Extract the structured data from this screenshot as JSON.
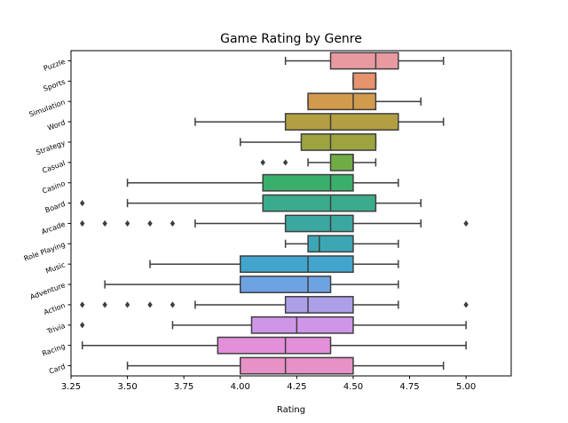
{
  "chart_data": {
    "type": "boxplot",
    "title": "Game Rating by Genre",
    "xlabel": "Rating",
    "ylabel": "",
    "xlim": [
      3.25,
      5.2
    ],
    "xticks": [
      "3.25",
      "3.50",
      "3.75",
      "4.00",
      "4.25",
      "4.50",
      "4.75",
      "5.00"
    ],
    "grid": false,
    "categories": [
      "Puzzle",
      "Sports",
      "Simulation",
      "Word",
      "Strategy",
      "Casual",
      "Casino",
      "Board",
      "Arcade",
      "Role Playing",
      "Music",
      "Adventure",
      "Action",
      "Trivia",
      "Racing",
      "Card"
    ],
    "series": [
      {
        "label": "Puzzle",
        "color": "#e99aa1",
        "whislo": 4.2,
        "q1": 4.4,
        "med": 4.6,
        "q3": 4.7,
        "whishi": 4.9,
        "fliers": []
      },
      {
        "label": "Sports",
        "color": "#e7936e",
        "whislo": 4.5,
        "q1": 4.5,
        "med": 4.6,
        "q3": 4.6,
        "whishi": 4.6,
        "fliers": []
      },
      {
        "label": "Simulation",
        "color": "#d19a4c",
        "whislo": 4.3,
        "q1": 4.3,
        "med": 4.5,
        "q3": 4.6,
        "whishi": 4.8,
        "fliers": []
      },
      {
        "label": "Word",
        "color": "#b39e41",
        "whislo": 3.8,
        "q1": 4.2,
        "med": 4.4,
        "q3": 4.7,
        "whishi": 4.9,
        "fliers": []
      },
      {
        "label": "Strategy",
        "color": "#9ca33f",
        "whislo": 4.0,
        "q1": 4.27,
        "med": 4.4,
        "q3": 4.6,
        "whishi": 4.6,
        "fliers": []
      },
      {
        "label": "Casual",
        "color": "#70ac45",
        "whislo": 4.3,
        "q1": 4.4,
        "med": 4.5,
        "q3": 4.5,
        "whishi": 4.6,
        "fliers": [
          4.1,
          4.2
        ]
      },
      {
        "label": "Casino",
        "color": "#3aae6b",
        "whislo": 3.5,
        "q1": 4.1,
        "med": 4.4,
        "q3": 4.5,
        "whishi": 4.7,
        "fliers": []
      },
      {
        "label": "Board",
        "color": "#3aab8c",
        "whislo": 3.5,
        "q1": 4.1,
        "med": 4.4,
        "q3": 4.6,
        "whishi": 4.8,
        "fliers": [
          3.3
        ]
      },
      {
        "label": "Arcade",
        "color": "#3aa8a0",
        "whislo": 3.8,
        "q1": 4.2,
        "med": 4.4,
        "q3": 4.5,
        "whishi": 4.8,
        "fliers": [
          3.3,
          3.4,
          3.5,
          3.6,
          3.7,
          5.0
        ]
      },
      {
        "label": "Role Playing",
        "color": "#3ca6b5",
        "whislo": 4.2,
        "q1": 4.3,
        "med": 4.35,
        "q3": 4.5,
        "whishi": 4.7,
        "fliers": []
      },
      {
        "label": "Music",
        "color": "#43a4cd",
        "whislo": 3.6,
        "q1": 4.0,
        "med": 4.3,
        "q3": 4.5,
        "whishi": 4.7,
        "fliers": []
      },
      {
        "label": "Adventure",
        "color": "#6ea3e3",
        "whislo": 3.4,
        "q1": 4.0,
        "med": 4.3,
        "q3": 4.4,
        "whishi": 4.7,
        "fliers": []
      },
      {
        "label": "Action",
        "color": "#ac9fe8",
        "whislo": 3.8,
        "q1": 4.2,
        "med": 4.3,
        "q3": 4.5,
        "whishi": 4.7,
        "fliers": [
          3.3,
          3.4,
          3.5,
          3.6,
          3.7,
          5.0
        ]
      },
      {
        "label": "Trivia",
        "color": "#cf96e8",
        "whislo": 3.7,
        "q1": 4.05,
        "med": 4.25,
        "q3": 4.5,
        "whishi": 5.0,
        "fliers": [
          3.3
        ]
      },
      {
        "label": "Racing",
        "color": "#e48fd9",
        "whislo": 3.3,
        "q1": 3.9,
        "med": 4.2,
        "q3": 4.4,
        "whishi": 5.0,
        "fliers": []
      },
      {
        "label": "Card",
        "color": "#e891c6",
        "whislo": 3.5,
        "q1": 4.0,
        "med": 4.2,
        "q3": 4.5,
        "whishi": 4.9,
        "fliers": []
      }
    ]
  }
}
